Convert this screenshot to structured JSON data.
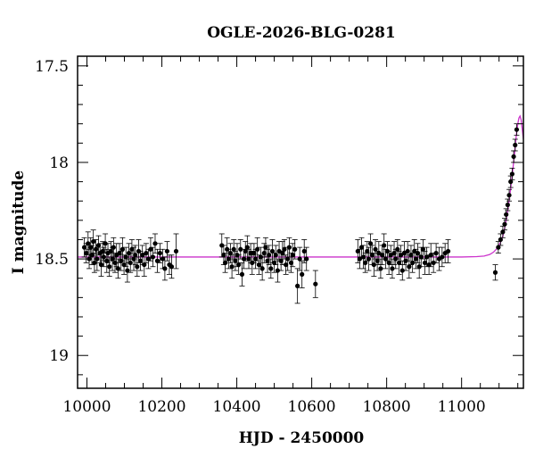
{
  "chart_data": {
    "type": "scatter",
    "title": "OGLE-2026-BLG-0281",
    "xlabel": "HJD - 2450000",
    "ylabel": "I magnitude",
    "xlim": [
      9975,
      11165
    ],
    "ylim": [
      19.17,
      17.45
    ],
    "y_axis_inverted": true,
    "xticks": [
      10000,
      10200,
      10400,
      10600,
      10800,
      11000
    ],
    "xtick_labels": [
      "10000",
      "10200",
      "10400",
      "10600",
      "10800",
      "11000"
    ],
    "yticks": [
      17.5,
      18,
      18.5,
      19
    ],
    "ytick_labels": [
      "17.5",
      "18",
      "18.5",
      "19"
    ],
    "grid": false,
    "legend": "none",
    "series": [
      {
        "kind": "points-with-errorbars",
        "color": "#000000",
        "points": [
          [
            9993,
            18.44,
            0.05
          ],
          [
            9998,
            18.47,
            0.05
          ],
          [
            10003,
            18.42,
            0.06
          ],
          [
            10006,
            18.5,
            0.05
          ],
          [
            10010,
            18.44,
            0.05
          ],
          [
            10013,
            18.48,
            0.05
          ],
          [
            10017,
            18.41,
            0.06
          ],
          [
            10020,
            18.52,
            0.05
          ],
          [
            10024,
            18.45,
            0.05
          ],
          [
            10027,
            18.5,
            0.06
          ],
          [
            10031,
            18.43,
            0.05
          ],
          [
            10035,
            18.47,
            0.05
          ],
          [
            10038,
            18.53,
            0.06
          ],
          [
            10042,
            18.46,
            0.05
          ],
          [
            10045,
            18.49,
            0.05
          ],
          [
            10049,
            18.42,
            0.05
          ],
          [
            10053,
            18.51,
            0.06
          ],
          [
            10056,
            18.47,
            0.05
          ],
          [
            10060,
            18.54,
            0.05
          ],
          [
            10064,
            18.46,
            0.05
          ],
          [
            10068,
            18.5,
            0.06
          ],
          [
            10071,
            18.44,
            0.05
          ],
          [
            10075,
            18.52,
            0.05
          ],
          [
            10079,
            18.48,
            0.06
          ],
          [
            10083,
            18.55,
            0.05
          ],
          [
            10087,
            18.47,
            0.05
          ],
          [
            10091,
            18.51,
            0.05
          ],
          [
            10095,
            18.45,
            0.06
          ],
          [
            10099,
            18.53,
            0.05
          ],
          [
            10104,
            18.49,
            0.05
          ],
          [
            10108,
            18.56,
            0.06
          ],
          [
            10112,
            18.47,
            0.05
          ],
          [
            10116,
            18.52,
            0.05
          ],
          [
            10120,
            18.45,
            0.05
          ],
          [
            10125,
            18.5,
            0.06
          ],
          [
            10129,
            18.48,
            0.05
          ],
          [
            10134,
            18.54,
            0.05
          ],
          [
            10138,
            18.46,
            0.06
          ],
          [
            10143,
            18.51,
            0.05
          ],
          [
            10148,
            18.48,
            0.05
          ],
          [
            10153,
            18.53,
            0.06
          ],
          [
            10158,
            18.47,
            0.05
          ],
          [
            10164,
            18.5,
            0.05
          ],
          [
            10170,
            18.45,
            0.06
          ],
          [
            10176,
            18.49,
            0.05
          ],
          [
            10182,
            18.42,
            0.05
          ],
          [
            10188,
            18.51,
            0.06
          ],
          [
            10195,
            18.47,
            0.05
          ],
          [
            10202,
            18.5,
            0.05
          ],
          [
            10208,
            18.55,
            0.06
          ],
          [
            10214,
            18.46,
            0.05
          ],
          [
            10220,
            18.53,
            0.05
          ],
          [
            10226,
            18.54,
            0.06
          ],
          [
            10238,
            18.46,
            0.09
          ],
          [
            10360,
            18.43,
            0.06
          ],
          [
            10365,
            18.48,
            0.05
          ],
          [
            10369,
            18.52,
            0.05
          ],
          [
            10374,
            18.45,
            0.06
          ],
          [
            10378,
            18.5,
            0.05
          ],
          [
            10383,
            18.47,
            0.05
          ],
          [
            10387,
            18.54,
            0.06
          ],
          [
            10392,
            18.45,
            0.05
          ],
          [
            10396,
            18.51,
            0.05
          ],
          [
            10401,
            18.48,
            0.06
          ],
          [
            10405,
            18.53,
            0.05
          ],
          [
            10410,
            18.45,
            0.05
          ],
          [
            10414,
            18.58,
            0.06
          ],
          [
            10419,
            18.5,
            0.05
          ],
          [
            10423,
            18.46,
            0.05
          ],
          [
            10428,
            18.44,
            0.06
          ],
          [
            10432,
            18.5,
            0.05
          ],
          [
            10437,
            18.47,
            0.05
          ],
          [
            10441,
            18.52,
            0.06
          ],
          [
            10446,
            18.47,
            0.05
          ],
          [
            10450,
            18.5,
            0.05
          ],
          [
            10455,
            18.45,
            0.06
          ],
          [
            10459,
            18.53,
            0.05
          ],
          [
            10464,
            18.49,
            0.05
          ],
          [
            10468,
            18.55,
            0.06
          ],
          [
            10473,
            18.47,
            0.05
          ],
          [
            10477,
            18.44,
            0.05
          ],
          [
            10482,
            18.51,
            0.06
          ],
          [
            10486,
            18.48,
            0.05
          ],
          [
            10491,
            18.55,
            0.05
          ],
          [
            10495,
            18.46,
            0.06
          ],
          [
            10500,
            18.52,
            0.05
          ],
          [
            10504,
            18.48,
            0.05
          ],
          [
            10509,
            18.56,
            0.06
          ],
          [
            10513,
            18.46,
            0.05
          ],
          [
            10518,
            18.51,
            0.05
          ],
          [
            10522,
            18.47,
            0.06
          ],
          [
            10527,
            18.45,
            0.05
          ],
          [
            10531,
            18.53,
            0.05
          ],
          [
            10536,
            18.5,
            0.06
          ],
          [
            10540,
            18.44,
            0.05
          ],
          [
            10545,
            18.52,
            0.05
          ],
          [
            10549,
            18.48,
            0.06
          ],
          [
            10555,
            18.45,
            0.05
          ],
          [
            10562,
            18.64,
            0.09
          ],
          [
            10568,
            18.5,
            0.06
          ],
          [
            10574,
            18.58,
            0.07
          ],
          [
            10580,
            18.46,
            0.06
          ],
          [
            10586,
            18.5,
            0.06
          ],
          [
            10610,
            18.63,
            0.07
          ],
          [
            10723,
            18.46,
            0.06
          ],
          [
            10728,
            18.5,
            0.05
          ],
          [
            10733,
            18.44,
            0.05
          ],
          [
            10738,
            18.49,
            0.06
          ],
          [
            10743,
            18.52,
            0.05
          ],
          [
            10748,
            18.46,
            0.05
          ],
          [
            10752,
            18.5,
            0.06
          ],
          [
            10757,
            18.42,
            0.05
          ],
          [
            10761,
            18.48,
            0.05
          ],
          [
            10766,
            18.53,
            0.06
          ],
          [
            10770,
            18.45,
            0.05
          ],
          [
            10775,
            18.51,
            0.05
          ],
          [
            10779,
            18.47,
            0.06
          ],
          [
            10784,
            18.55,
            0.05
          ],
          [
            10788,
            18.48,
            0.05
          ],
          [
            10793,
            18.43,
            0.06
          ],
          [
            10797,
            18.5,
            0.05
          ],
          [
            10802,
            18.46,
            0.05
          ],
          [
            10806,
            18.52,
            0.06
          ],
          [
            10811,
            18.48,
            0.05
          ],
          [
            10815,
            18.55,
            0.05
          ],
          [
            10820,
            18.47,
            0.06
          ],
          [
            10824,
            18.5,
            0.05
          ],
          [
            10829,
            18.45,
            0.05
          ],
          [
            10833,
            18.52,
            0.06
          ],
          [
            10838,
            18.48,
            0.05
          ],
          [
            10842,
            18.56,
            0.05
          ],
          [
            10847,
            18.47,
            0.06
          ],
          [
            10851,
            18.51,
            0.05
          ],
          [
            10856,
            18.46,
            0.05
          ],
          [
            10860,
            18.54,
            0.06
          ],
          [
            10865,
            18.48,
            0.05
          ],
          [
            10869,
            18.52,
            0.05
          ],
          [
            10874,
            18.46,
            0.06
          ],
          [
            10878,
            18.5,
            0.05
          ],
          [
            10883,
            18.47,
            0.05
          ],
          [
            10887,
            18.54,
            0.06
          ],
          [
            10892,
            18.49,
            0.05
          ],
          [
            10897,
            18.45,
            0.05
          ],
          [
            10902,
            18.52,
            0.06
          ],
          [
            10907,
            18.49,
            0.05
          ],
          [
            10913,
            18.53,
            0.05
          ],
          [
            10918,
            18.48,
            0.06
          ],
          [
            10925,
            18.52,
            0.05
          ],
          [
            10932,
            18.47,
            0.05
          ],
          [
            10940,
            18.5,
            0.06
          ],
          [
            10948,
            18.49,
            0.05
          ],
          [
            10956,
            18.47,
            0.05
          ],
          [
            10964,
            18.46,
            0.06
          ],
          [
            11090,
            18.57,
            0.04
          ],
          [
            11098,
            18.44,
            0.03
          ],
          [
            11104,
            18.4,
            0.03
          ],
          [
            11110,
            18.36,
            0.03
          ],
          [
            11115,
            18.32,
            0.03
          ],
          [
            11119,
            18.27,
            0.03
          ],
          [
            11123,
            18.22,
            0.03
          ],
          [
            11127,
            18.17,
            0.03
          ],
          [
            11131,
            18.1,
            0.03
          ],
          [
            11135,
            18.06,
            0.03
          ],
          [
            11139,
            17.97,
            0.03
          ],
          [
            11143,
            17.91,
            0.03
          ],
          [
            11147,
            17.83,
            0.03
          ]
        ]
      },
      {
        "kind": "model-curve",
        "color": "#cc33cc",
        "baseline": 18.49,
        "points": [
          [
            9975,
            18.49
          ],
          [
            11000,
            18.49
          ],
          [
            11040,
            18.488
          ],
          [
            11060,
            18.485
          ],
          [
            11075,
            18.477
          ],
          [
            11085,
            18.465
          ],
          [
            11095,
            18.445
          ],
          [
            11105,
            18.41
          ],
          [
            11112,
            18.37
          ],
          [
            11118,
            18.31
          ],
          [
            11124,
            18.24
          ],
          [
            11130,
            18.15
          ],
          [
            11136,
            18.05
          ],
          [
            11141,
            17.96
          ],
          [
            11146,
            17.86
          ],
          [
            11150,
            17.8
          ],
          [
            11153,
            17.77
          ],
          [
            11156,
            17.76
          ],
          [
            11159,
            17.78
          ],
          [
            11162,
            17.83
          ],
          [
            11165,
            17.88
          ]
        ]
      }
    ]
  }
}
